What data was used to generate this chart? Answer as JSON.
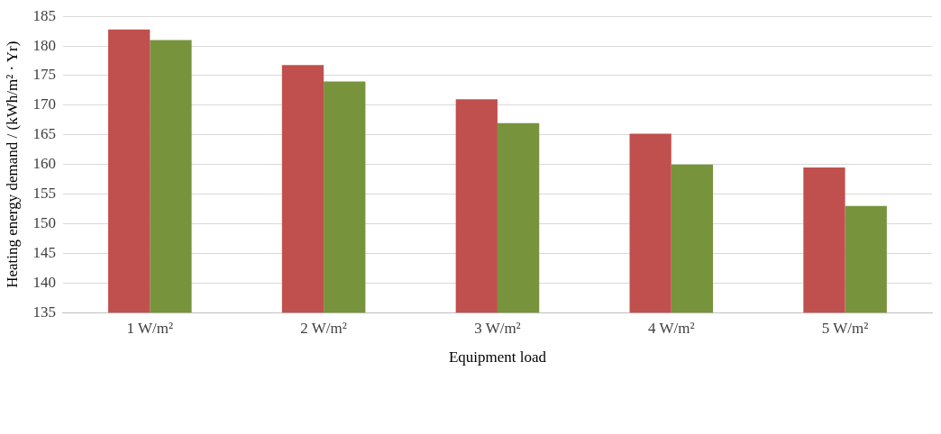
{
  "chart_data": {
    "type": "bar",
    "xlabel": "Equipment load",
    "ylabel": "Heating energy demand / (kWh/m² · Yr)",
    "categories": [
      "1 W/m²",
      "2 W/m²",
      "3 W/m²",
      "4 W/m²",
      "5 W/m²"
    ],
    "series": [
      {
        "color": "#c0504d",
        "values": [
          182.8,
          176.8,
          171,
          165.2,
          159.5
        ]
      },
      {
        "color": "#77933c",
        "values": [
          181,
          174,
          167,
          160,
          153
        ]
      }
    ],
    "ylim": [
      135,
      185
    ],
    "yticks": [
      135,
      140,
      145,
      150,
      155,
      160,
      165,
      170,
      175,
      180,
      185
    ],
    "grid": "y"
  }
}
